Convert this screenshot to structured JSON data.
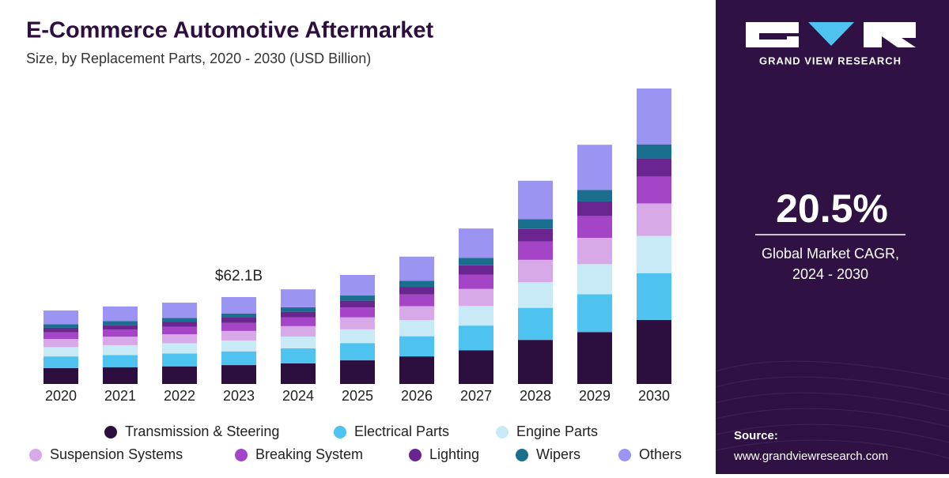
{
  "chart_data": {
    "type": "stacked_bar",
    "title": "E-Commerce Automotive Aftermarket",
    "subtitle": "Size, by Replacement Parts, 2020 - 2030 (USD Billion)",
    "annotation": "$62.1B",
    "categories": [
      "2020",
      "2021",
      "2022",
      "2023",
      "2024",
      "2025",
      "2026",
      "2027",
      "2028",
      "2029",
      "2030"
    ],
    "series": [
      {
        "name": "Transmission & Steering",
        "color": "#2d0f3f",
        "values": [
          11.4,
          12.0,
          12.6,
          13.5,
          14.7,
          16.9,
          19.7,
          24.1,
          31.5,
          37.1,
          45.8
        ]
      },
      {
        "name": "Electrical Parts",
        "color": "#4ec3ef",
        "values": [
          8.3,
          8.7,
          9.2,
          9.8,
          10.7,
          12.3,
          14.4,
          17.6,
          22.9,
          27.0,
          33.4
        ]
      },
      {
        "name": "Engine Parts",
        "color": "#c8eaf7",
        "values": [
          6.6,
          7.0,
          7.3,
          7.8,
          8.5,
          9.8,
          11.5,
          14.0,
          18.3,
          21.5,
          26.6
        ]
      },
      {
        "name": "Suspension Systems",
        "color": "#d8a9e8",
        "values": [
          5.8,
          6.1,
          6.4,
          6.8,
          7.4,
          8.6,
          10.0,
          12.2,
          16.0,
          18.8,
          23.2
        ]
      },
      {
        "name": "Breaking System",
        "color": "#a445c7",
        "values": [
          4.8,
          5.0,
          5.3,
          5.7,
          6.2,
          7.1,
          8.3,
          10.1,
          13.2,
          15.6,
          19.2
        ]
      },
      {
        "name": "Lighting",
        "color": "#6a2590",
        "values": [
          3.2,
          3.4,
          3.5,
          3.8,
          4.1,
          4.8,
          5.5,
          6.8,
          8.9,
          10.4,
          12.9
        ]
      },
      {
        "name": "Wipers",
        "color": "#1a6f8e",
        "values": [
          2.5,
          2.7,
          2.8,
          3.0,
          3.2,
          3.7,
          4.4,
          5.3,
          7.0,
          8.2,
          10.1
        ]
      },
      {
        "name": "Others",
        "color": "#9b94f2",
        "values": [
          9.9,
          10.5,
          11.0,
          11.7,
          12.8,
          14.7,
          17.2,
          21.0,
          27.4,
          32.3,
          39.9
        ]
      }
    ]
  },
  "sidebar": {
    "brand": "GRAND VIEW RESEARCH",
    "cagr": "20.5%",
    "cagr_label": [
      "Global Market CAGR,",
      "2024 - 2030"
    ],
    "source_label": "Source:",
    "source_url": "www.grandviewresearch.com"
  }
}
